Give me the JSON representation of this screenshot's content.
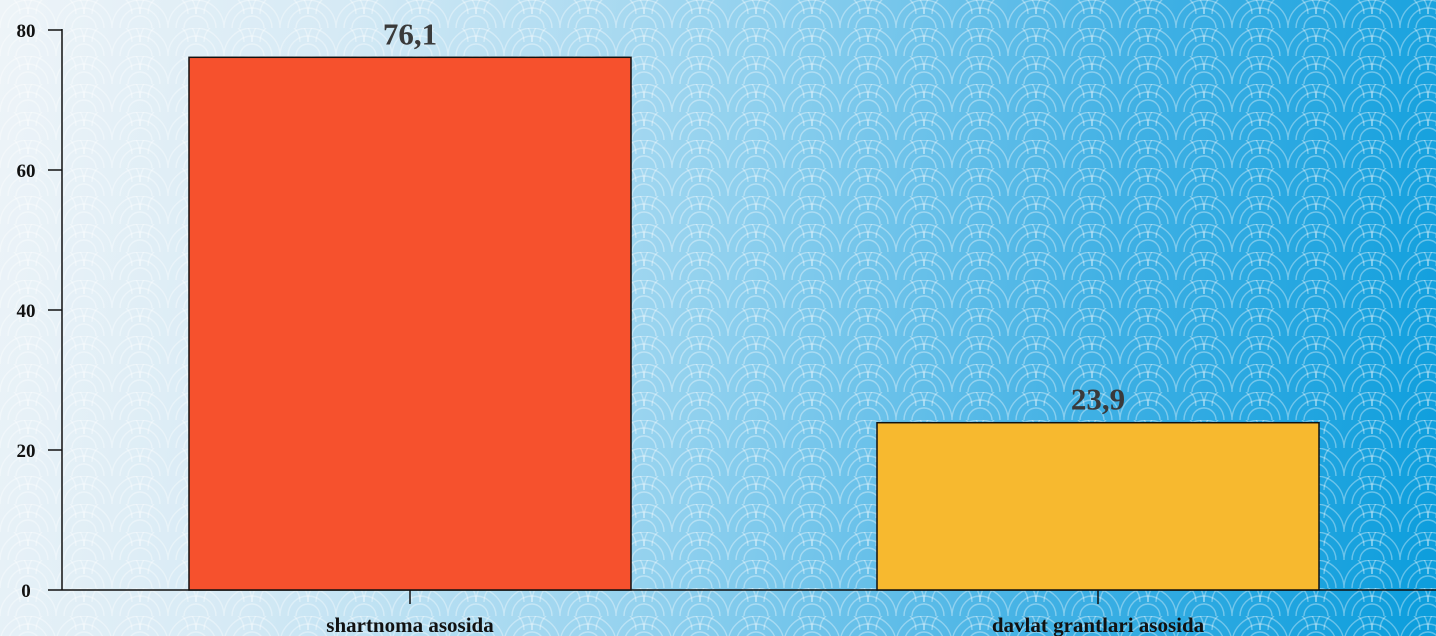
{
  "chart_data": {
    "type": "bar",
    "categories": [
      "shartnoma asosida",
      "davlat grantlari asosida"
    ],
    "values": [
      76.1,
      23.9
    ],
    "data_labels": [
      "76,1",
      "23,9"
    ],
    "colors": [
      "#f6512d",
      "#f7b92f"
    ],
    "title": "",
    "xlabel": "",
    "ylabel": "",
    "ylim": [
      0,
      80
    ],
    "yticks": [
      0,
      20,
      40,
      60,
      80
    ],
    "ytick_labels": [
      "0",
      "20",
      "40",
      "60",
      "80"
    ],
    "grid": false,
    "legend": "none"
  }
}
